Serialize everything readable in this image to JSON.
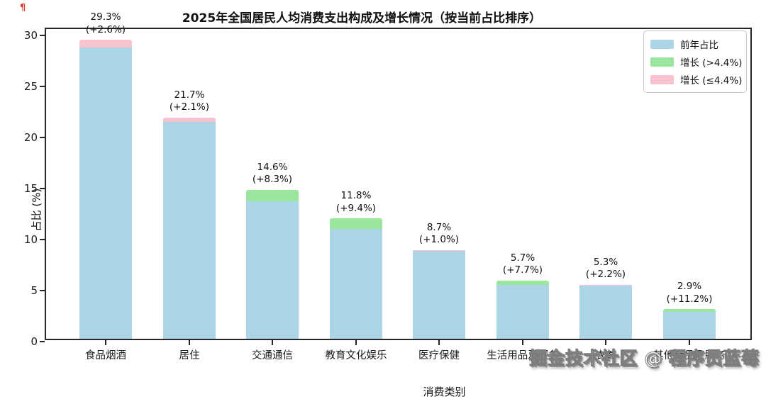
{
  "page": {
    "corner_mark": "¶",
    "watermark": "掘金技术社区 @ 程序员蓝莓"
  },
  "colors": {
    "bar_base": "#ACD5E5",
    "growth_high": "#9AE69E",
    "growth_low": "#F8C3CE",
    "axis": "#262626"
  },
  "chart_data": {
    "type": "bar",
    "stacked": true,
    "title": "2025年全国居民人均消费支出构成及增长情况（按当前占比排序）",
    "xlabel": "消费类别",
    "ylabel": "占比 (%)",
    "ylim": [
      0,
      30.6
    ],
    "yticks": [
      0,
      5,
      10,
      15,
      20,
      25,
      30
    ],
    "grid": false,
    "legend_position": "upper right",
    "growth_threshold_pct": 4.4,
    "legend": [
      {
        "label": "前年占比",
        "color": "#ACD5E5"
      },
      {
        "label": "增长 (>4.4%)",
        "color": "#9AE69E"
      },
      {
        "label": "增长 (≤4.4%)",
        "color": "#F8C3CE"
      }
    ],
    "categories": [
      "食品烟酒",
      "居住",
      "交通通信",
      "教育文化娱乐",
      "医疗保健",
      "生活用品及服务",
      "衣着",
      "其他用品及服务"
    ],
    "bars": [
      {
        "category": "食品烟酒",
        "share_pct": 29.3,
        "growth_pct": 2.6,
        "base_pct": 28.56,
        "growth_segment_pct": 0.74,
        "growth_type": "low",
        "label": "29.3%",
        "sublabel": "(+2.6%)"
      },
      {
        "category": "居住",
        "share_pct": 21.7,
        "growth_pct": 2.1,
        "base_pct": 21.25,
        "growth_segment_pct": 0.45,
        "growth_type": "low",
        "label": "21.7%",
        "sublabel": "(+2.1%)"
      },
      {
        "category": "交通通信",
        "share_pct": 14.6,
        "growth_pct": 8.3,
        "base_pct": 13.48,
        "growth_segment_pct": 1.12,
        "growth_type": "high",
        "label": "14.6%",
        "sublabel": "(+8.3%)"
      },
      {
        "category": "教育文化娱乐",
        "share_pct": 11.8,
        "growth_pct": 9.4,
        "base_pct": 10.79,
        "growth_segment_pct": 1.01,
        "growth_type": "high",
        "label": "11.8%",
        "sublabel": "(+9.4%)"
      },
      {
        "category": "医疗保健",
        "share_pct": 8.7,
        "growth_pct": 1.0,
        "base_pct": 8.61,
        "growth_segment_pct": 0.09,
        "growth_type": "low",
        "label": "8.7%",
        "sublabel": "(+1.0%)"
      },
      {
        "category": "生活用品及服务",
        "share_pct": 5.7,
        "growth_pct": 7.7,
        "base_pct": 5.29,
        "growth_segment_pct": 0.41,
        "growth_type": "high",
        "label": "5.7%",
        "sublabel": "(+7.7%)"
      },
      {
        "category": "衣着",
        "share_pct": 5.3,
        "growth_pct": 2.2,
        "base_pct": 5.19,
        "growth_segment_pct": 0.11,
        "growth_type": "low",
        "label": "5.3%",
        "sublabel": "(+2.2%)"
      },
      {
        "category": "其他用品及服务",
        "share_pct": 2.9,
        "growth_pct": 11.2,
        "base_pct": 2.61,
        "growth_segment_pct": 0.29,
        "growth_type": "high",
        "label": "2.9%",
        "sublabel": "(+11.2%)"
      }
    ]
  }
}
